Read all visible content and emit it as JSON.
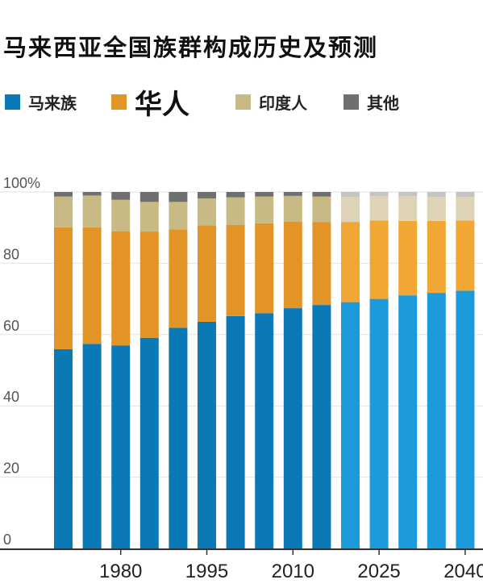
{
  "title": "马来西亚全国族群构成历史及预测",
  "legend": [
    {
      "label": "马来族",
      "color": "#0a79b6"
    },
    {
      "label": "华人",
      "color": "#e29526"
    },
    {
      "label": "印度人",
      "color": "#c8ba84"
    },
    {
      "label": "其他",
      "color": "#6f6f6f"
    }
  ],
  "colors": {
    "malay_projected": "#1b9bdb",
    "chinese_projected": "#f1a733",
    "indian_projected": "#ded3b4",
    "other_projected": "#c4c4c4",
    "axis": "#333333",
    "tick_text": "#555555"
  },
  "chart_data": {
    "type": "bar",
    "stacked": true,
    "ylim": [
      0,
      100
    ],
    "y_ticks": [
      "0",
      "20",
      "40",
      "60",
      "80",
      "100%"
    ],
    "x_tick_labels": [
      "1980",
      "1995",
      "2010",
      "2025",
      "2040"
    ],
    "series": [
      {
        "name": "马来族",
        "values": [
          55.9,
          57.4,
          56.9,
          59.1,
          61.9,
          63.6,
          65.2,
          66.0,
          67.4,
          68.3,
          69.1,
          70.0,
          71.0,
          71.7,
          72.3
        ]
      },
      {
        "name": "华人",
        "values": [
          34.2,
          32.7,
          32.1,
          29.8,
          27.6,
          27.0,
          25.6,
          25.2,
          24.3,
          23.3,
          22.5,
          22.0,
          20.9,
          20.2,
          19.7
        ]
      },
      {
        "name": "印度人",
        "values": [
          8.6,
          8.9,
          8.8,
          8.3,
          7.7,
          7.6,
          7.7,
          7.5,
          7.2,
          7.1,
          7.0,
          6.8,
          6.9,
          6.7,
          6.6
        ]
      },
      {
        "name": "其他",
        "values": [
          1.3,
          1.0,
          2.2,
          2.8,
          2.8,
          1.8,
          1.5,
          1.3,
          1.1,
          1.3,
          1.4,
          1.2,
          1.2,
          1.4,
          1.4
        ]
      }
    ],
    "projected_from_index": 10
  }
}
